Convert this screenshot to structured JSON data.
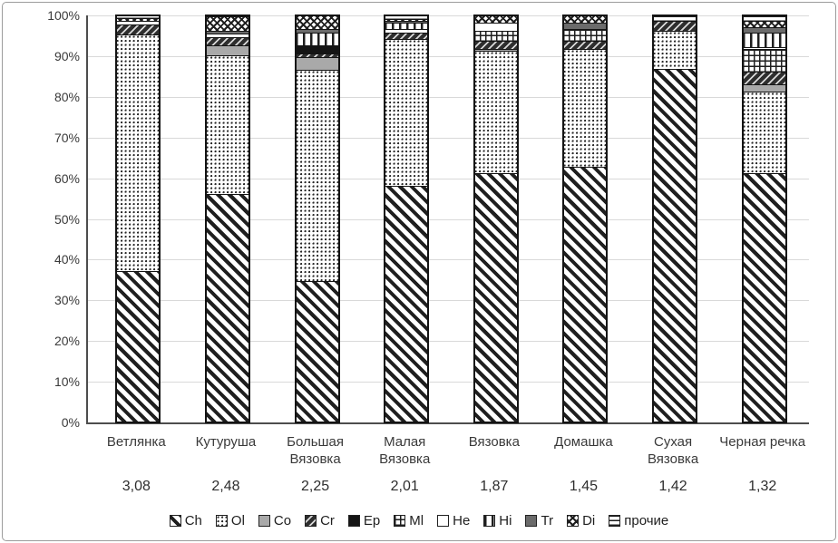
{
  "chart_data": {
    "type": "bar",
    "variant": "100%-stacked-vertical",
    "title": "",
    "xlabel": "",
    "ylabel": "",
    "ylim": [
      0,
      100
    ],
    "grid": "horizontal",
    "legend_position": "bottom",
    "y_ticks": [
      "0%",
      "10%",
      "20%",
      "30%",
      "40%",
      "50%",
      "60%",
      "70%",
      "80%",
      "90%",
      "100%"
    ],
    "categories": [
      "Ветлянка",
      "Кутуруша",
      "Большая Вязовка",
      "Малая Вязовка",
      "Вязовка",
      "Домашка",
      "Сухая Вязовка",
      "Черная речка"
    ],
    "category_values": [
      "3,08",
      "2,48",
      "2,25",
      "2,01",
      "1,87",
      "1,45",
      "1,42",
      "1,32"
    ],
    "series": [
      {
        "name": "Ch",
        "pattern": "diag",
        "values": [
          37,
          56,
          34.5,
          58,
          61,
          62.5,
          87,
          61
        ]
      },
      {
        "name": "Ol",
        "pattern": "dots",
        "values": [
          58,
          34,
          52,
          36,
          30,
          29,
          9.5,
          20
        ]
      },
      {
        "name": "Co",
        "pattern": "gray",
        "values": [
          0,
          2.5,
          3,
          0,
          0.5,
          0,
          0,
          1.8
        ]
      },
      {
        "name": "Cr",
        "pattern": "darkdash",
        "values": [
          2.5,
          2,
          1,
          1.5,
          2,
          2,
          2.5,
          3.2
        ]
      },
      {
        "name": "Ep",
        "pattern": "black",
        "values": [
          0,
          0,
          2,
          0,
          0,
          0,
          0,
          0
        ]
      },
      {
        "name": "Ml",
        "pattern": "grid",
        "values": [
          0,
          0,
          0,
          0,
          2.5,
          3,
          0,
          5.5
        ]
      },
      {
        "name": "He",
        "pattern": "white",
        "values": [
          1,
          0.8,
          0,
          1,
          2,
          0,
          0,
          0.5
        ]
      },
      {
        "name": "Hi",
        "pattern": "vert",
        "values": [
          0,
          0,
          3,
          1.5,
          0,
          0,
          0,
          3.5
        ]
      },
      {
        "name": "Tr",
        "pattern": "darkgray",
        "values": [
          0,
          0.7,
          1,
          0.5,
          0,
          1.5,
          0,
          1.3
        ]
      },
      {
        "name": "Di",
        "pattern": "crosshatch",
        "values": [
          0.7,
          3.5,
          3.5,
          0.5,
          2,
          2,
          0,
          1.7
        ]
      },
      {
        "name": "прочие",
        "pattern": "horiz",
        "values": [
          0.8,
          0.5,
          0,
          1,
          0,
          0,
          1.5,
          1.5
        ]
      }
    ]
  }
}
